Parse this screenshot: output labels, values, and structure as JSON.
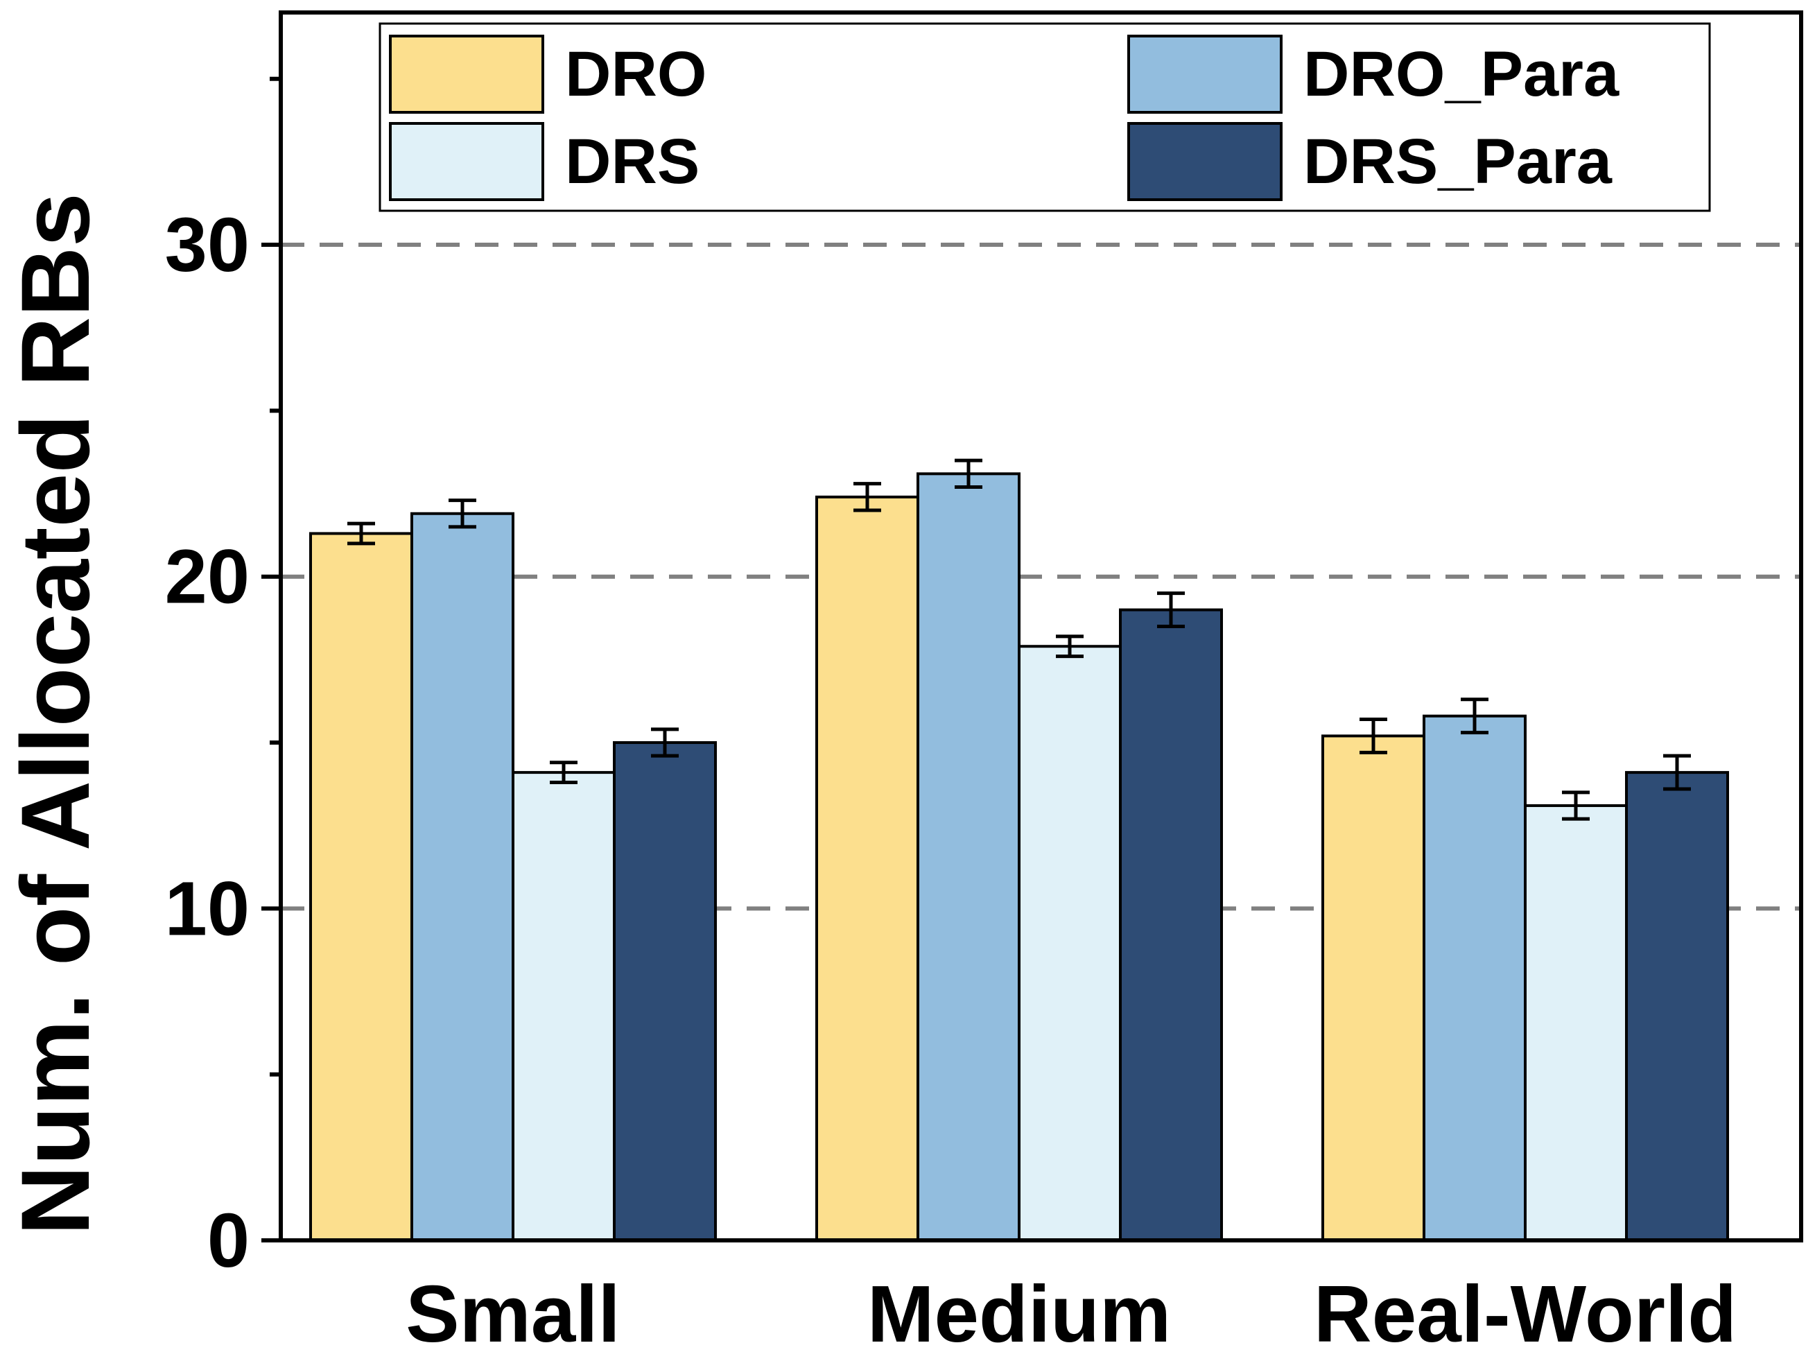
{
  "chart_data": {
    "type": "bar",
    "title": "",
    "xlabel": "",
    "ylabel": "Num. of Allocated RBs",
    "categories": [
      "Small",
      "Medium",
      "Real-World"
    ],
    "ylim": [
      0,
      37
    ],
    "yticks": [
      0,
      10,
      20,
      30
    ],
    "grid": "dashed horizontal lines at major ticks",
    "legend": "top, 2 columns",
    "series": [
      {
        "name": "DRO",
        "color": "#FCDF8E",
        "values": [
          21.3,
          22.4,
          15.2
        ],
        "errors": [
          0.3,
          0.4,
          0.5
        ]
      },
      {
        "name": "DRO_Para",
        "color": "#92BDDE",
        "values": [
          21.9,
          23.1,
          15.8
        ],
        "errors": [
          0.4,
          0.4,
          0.5
        ]
      },
      {
        "name": "DRS",
        "color": "#E0F1F8",
        "values": [
          14.1,
          17.9,
          13.1
        ],
        "errors": [
          0.3,
          0.3,
          0.4
        ]
      },
      {
        "name": "DRS_Para",
        "color": "#2E4C75",
        "values": [
          15.0,
          19.0,
          14.1
        ],
        "errors": [
          0.4,
          0.5,
          0.5
        ]
      }
    ]
  }
}
